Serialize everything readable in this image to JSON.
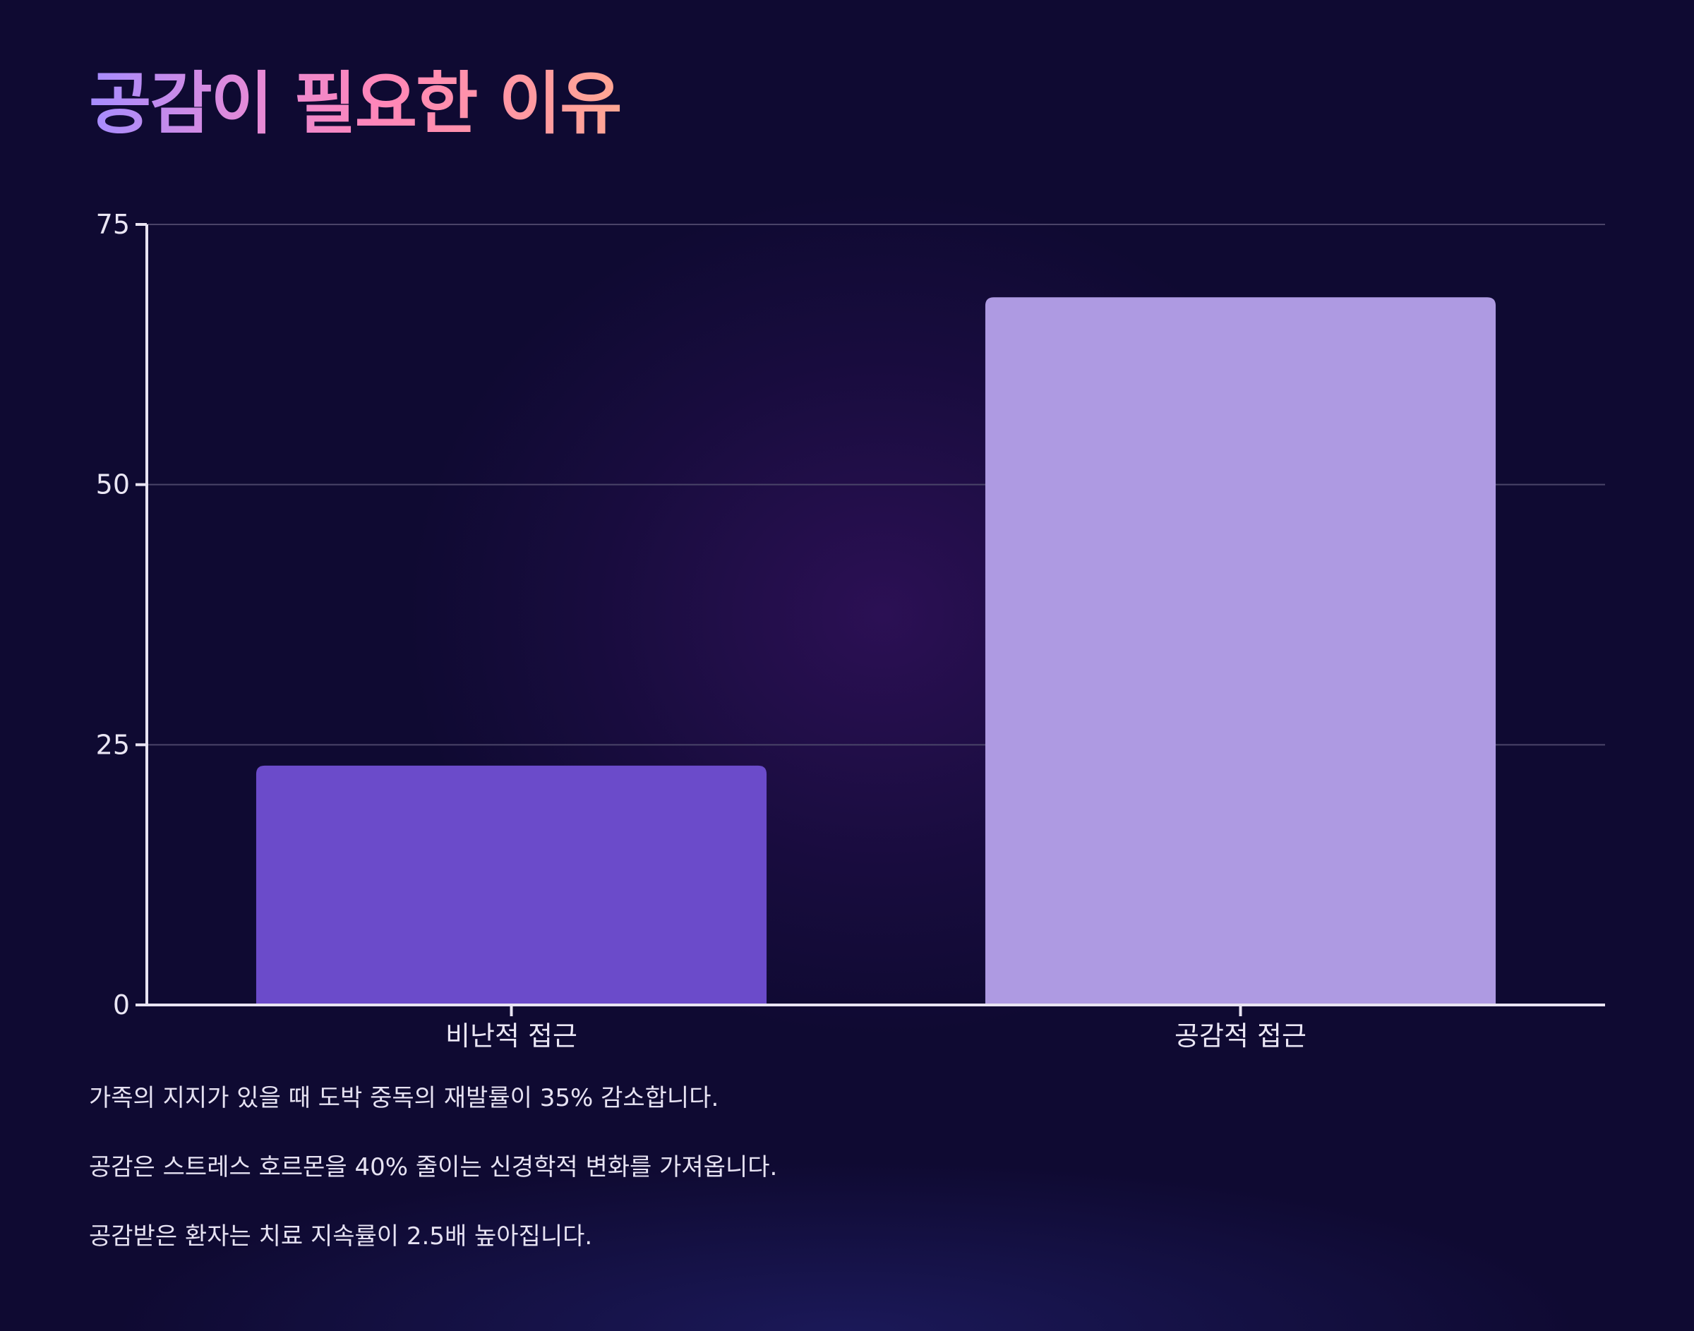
{
  "page": {
    "title": "공감이 필요한 이유"
  },
  "chart_data": {
    "type": "bar",
    "categories": [
      "비난적 접근",
      "공감적 접근"
    ],
    "values": [
      23,
      68
    ],
    "colors": [
      "#6b4bca",
      "#ae9ae2"
    ],
    "ylim": [
      0,
      75
    ],
    "yticks": [
      0,
      25,
      50,
      75
    ],
    "grid": true,
    "legend": "none",
    "title": "",
    "xlabel": "",
    "ylabel": ""
  },
  "notes": [
    "가족의 지지가 있을 때 도박 중독의 재발률이 35% 감소합니다.",
    "공감은 스트레스 호르몬을 40% 줄이는 신경학적 변화를 가져옵니다.",
    "공감받은 환자는 치료 지속률이 2.5배 높아집니다."
  ],
  "colors": {
    "background": "#0f0a32",
    "axis": "#e9e4f2",
    "gridline": "#4a4468"
  }
}
